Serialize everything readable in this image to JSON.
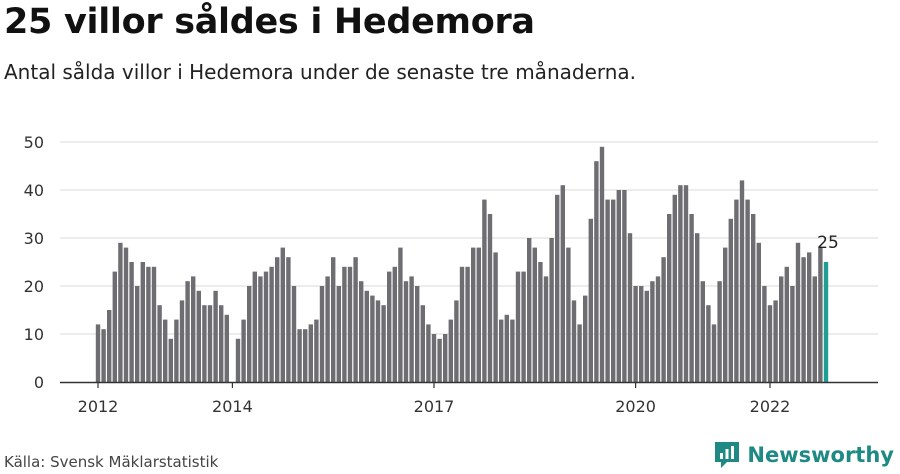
{
  "header": {
    "title": "25 villor såldes i Hedemora",
    "subtitle": "Antal sålda villor i Hedemora under de senaste tre månaderna."
  },
  "footer": {
    "source": "Källa: Svensk Mäklarstatistik",
    "brand": "Newsworthy",
    "brand_icon": "newsworthy-logo-icon"
  },
  "colors": {
    "bar": "#6e6d72",
    "highlight": "#1f9e94",
    "grid": "#d9d9d9",
    "axis": "#333333"
  },
  "chart_data": {
    "type": "bar",
    "title": "25 villor såldes i Hedemora",
    "subtitle": "Antal sålda villor i Hedemora under de senaste tre månaderna.",
    "ylim": [
      0,
      50
    ],
    "yticks": [
      0,
      10,
      20,
      30,
      40,
      50
    ],
    "x_tick_labels": [
      "2012",
      "2014",
      "2017",
      "2020",
      "2022"
    ],
    "grid": true,
    "highlight_last": true,
    "last_label": "25",
    "values": [
      12,
      11,
      15,
      23,
      29,
      28,
      25,
      20,
      25,
      24,
      24,
      16,
      13,
      9,
      13,
      17,
      21,
      22,
      19,
      16,
      16,
      19,
      16,
      14,
      0,
      9,
      13,
      20,
      23,
      22,
      23,
      24,
      26,
      28,
      26,
      20,
      11,
      11,
      12,
      13,
      20,
      22,
      26,
      20,
      24,
      24,
      26,
      21,
      19,
      18,
      17,
      16,
      23,
      24,
      28,
      21,
      22,
      20,
      16,
      12,
      10,
      9,
      10,
      13,
      17,
      24,
      24,
      28,
      28,
      38,
      35,
      27,
      13,
      14,
      13,
      23,
      23,
      30,
      28,
      25,
      22,
      30,
      39,
      41,
      28,
      17,
      12,
      18,
      34,
      46,
      49,
      38,
      38,
      40,
      40,
      31,
      20,
      20,
      19,
      21,
      22,
      26,
      35,
      39,
      41,
      41,
      35,
      31,
      21,
      16,
      12,
      21,
      28,
      34,
      38,
      42,
      38,
      35,
      29,
      20,
      16,
      17,
      22,
      24,
      20,
      29,
      26,
      27,
      22,
      28,
      25
    ]
  }
}
